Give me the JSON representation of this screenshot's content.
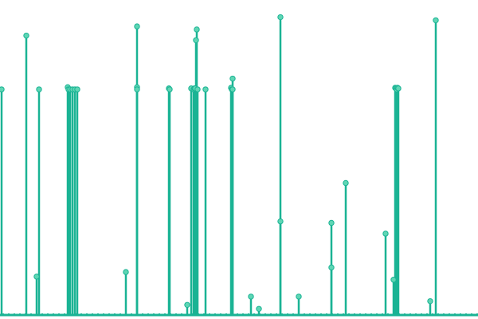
{
  "chart_data": {
    "type": "lollipop",
    "title": "",
    "xlabel": "",
    "ylabel": "",
    "xlim": [
      0,
      600
    ],
    "ylim": [
      0,
      100
    ],
    "grid": false,
    "legend": "none",
    "color": "#1ab394",
    "marker_fill": "#5fd6b4",
    "x": [
      2,
      33,
      46,
      49,
      85,
      86,
      88,
      91,
      94,
      97,
      158,
      172,
      172,
      172,
      212,
      213,
      235,
      240,
      243,
      244,
      245,
      246,
      247,
      248,
      258,
      290,
      291,
      292,
      292,
      315,
      325,
      352,
      352,
      375,
      416,
      416,
      434,
      484,
      494,
      496,
      497,
      498,
      499,
      500,
      540,
      547
    ],
    "y": [
      73.5,
      91.0,
      12.5,
      73.5,
      74.2,
      73.5,
      73.5,
      73.5,
      73.5,
      73.5,
      14.0,
      74.2,
      73.5,
      94.0,
      73.8,
      73.5,
      3.3,
      73.8,
      73.5,
      73.8,
      73.8,
      89.5,
      93.0,
      73.5,
      73.5,
      74.0,
      73.5,
      73.5,
      77.0,
      6.0,
      2.0,
      97.0,
      30.5,
      6.0,
      30.0,
      15.5,
      43.0,
      26.5,
      11.5,
      74.0,
      73.8,
      73.5,
      74.0,
      73.8,
      4.5,
      96.0
    ]
  }
}
